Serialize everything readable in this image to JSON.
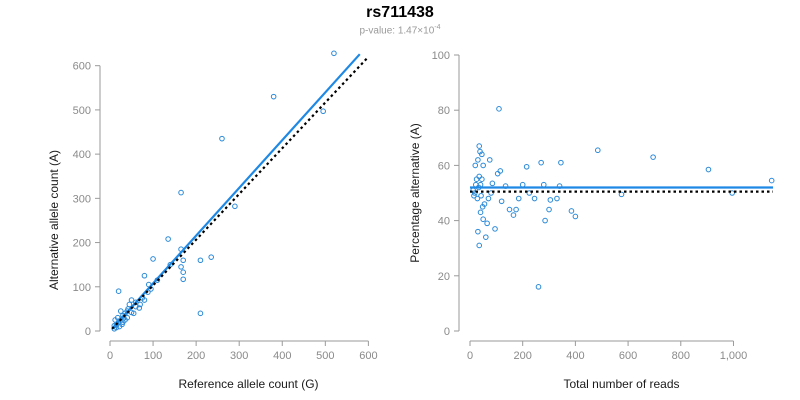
{
  "title": "rs711438",
  "subtitle": {
    "prefix": "p-value: 1.47×10",
    "exponent": "-4"
  },
  "colors": {
    "points": "#2b8ad8",
    "fit": "#1e88e5",
    "reference": "#000000",
    "axis": "#9a9a9a"
  },
  "chart_data": [
    {
      "type": "scatter",
      "xlabel": "Reference allele count (G)",
      "ylabel": "Alternative allele count (A)",
      "xlim": [
        0,
        620
      ],
      "ylim": [
        0,
        640
      ],
      "xticks": [
        0,
        100,
        200,
        300,
        400,
        500,
        600
      ],
      "yticks": [
        0,
        100,
        200,
        300,
        400,
        500,
        600
      ],
      "grid": false,
      "fit_line": {
        "x": [
          5,
          580
        ],
        "y": [
          5,
          626
        ],
        "style": "solid"
      },
      "reference_line": {
        "x": [
          5,
          600
        ],
        "y": [
          5,
          620
        ],
        "style": "dotted"
      },
      "points": [
        [
          520,
          628
        ],
        [
          380,
          530
        ],
        [
          495,
          497
        ],
        [
          260,
          435
        ],
        [
          165,
          313
        ],
        [
          290,
          282
        ],
        [
          135,
          208
        ],
        [
          100,
          163
        ],
        [
          165,
          185
        ],
        [
          170,
          160
        ],
        [
          235,
          167
        ],
        [
          210,
          160
        ],
        [
          165,
          145
        ],
        [
          170,
          133
        ],
        [
          170,
          117
        ],
        [
          140,
          150
        ],
        [
          210,
          40
        ],
        [
          80,
          125
        ],
        [
          90,
          105
        ],
        [
          95,
          95
        ],
        [
          80,
          70
        ],
        [
          75,
          75
        ],
        [
          70,
          60
        ],
        [
          60,
          65
        ],
        [
          50,
          70
        ],
        [
          45,
          60
        ],
        [
          55,
          40
        ],
        [
          40,
          45
        ],
        [
          35,
          40
        ],
        [
          30,
          35
        ],
        [
          25,
          45
        ],
        [
          20,
          90
        ],
        [
          40,
          30
        ],
        [
          35,
          25
        ],
        [
          30,
          20
        ],
        [
          25,
          25
        ],
        [
          20,
          20
        ],
        [
          15,
          15
        ],
        [
          10,
          12
        ],
        [
          12,
          25
        ],
        [
          18,
          30
        ],
        [
          22,
          10
        ],
        [
          28,
          15
        ],
        [
          32,
          30
        ],
        [
          15,
          8
        ],
        [
          10,
          5
        ],
        [
          42,
          50
        ],
        [
          50,
          42
        ],
        [
          60,
          55
        ],
        [
          68,
          52
        ],
        [
          88,
          88
        ],
        [
          110,
          115
        ]
      ]
    },
    {
      "type": "scatter",
      "xlabel": "Total number of reads",
      "ylabel": "Percentage alternative (A)",
      "xlim": [
        0,
        1150
      ],
      "ylim": [
        0,
        100
      ],
      "xticks": [
        0,
        200,
        400,
        600,
        800,
        1000
      ],
      "xticklabels": [
        "0",
        "200",
        "400",
        "600",
        "800",
        "1,000"
      ],
      "yticks": [
        0,
        20,
        40,
        60,
        80,
        100
      ],
      "grid": false,
      "fit_line": {
        "x": [
          0,
          1150
        ],
        "y": [
          52,
          52
        ],
        "style": "solid"
      },
      "reference_line": {
        "x": [
          0,
          1150
        ],
        "y": [
          50.5,
          50.5
        ],
        "style": "dotted"
      },
      "points": [
        [
          1145,
          54.5
        ],
        [
          995,
          50
        ],
        [
          905,
          58.5
        ],
        [
          695,
          63
        ],
        [
          575,
          49.5
        ],
        [
          485,
          65.5
        ],
        [
          400,
          41.5
        ],
        [
          385,
          43.5
        ],
        [
          345,
          61
        ],
        [
          340,
          52.5
        ],
        [
          330,
          48
        ],
        [
          305,
          47.5
        ],
        [
          300,
          44
        ],
        [
          285,
          40
        ],
        [
          280,
          53
        ],
        [
          270,
          61
        ],
        [
          260,
          16
        ],
        [
          245,
          48
        ],
        [
          225,
          50
        ],
        [
          215,
          59.5
        ],
        [
          200,
          53
        ],
        [
          185,
          48
        ],
        [
          175,
          44
        ],
        [
          165,
          42
        ],
        [
          150,
          44
        ],
        [
          135,
          52.5
        ],
        [
          120,
          47
        ],
        [
          115,
          58
        ],
        [
          110,
          80.5
        ],
        [
          105,
          57
        ],
        [
          95,
          37
        ],
        [
          85,
          53.5
        ],
        [
          80,
          50
        ],
        [
          75,
          62
        ],
        [
          70,
          48
        ],
        [
          65,
          39
        ],
        [
          60,
          34
        ],
        [
          55,
          46
        ],
        [
          50,
          40.5
        ],
        [
          50,
          60
        ],
        [
          45,
          64
        ],
        [
          45,
          55
        ],
        [
          42,
          49
        ],
        [
          40,
          43
        ],
        [
          38,
          65
        ],
        [
          35,
          67
        ],
        [
          35,
          56
        ],
        [
          33,
          52
        ],
        [
          30,
          62
        ],
        [
          28,
          48
        ],
        [
          25,
          55
        ],
        [
          22,
          53
        ],
        [
          20,
          60
        ],
        [
          18,
          50
        ],
        [
          15,
          49
        ],
        [
          12,
          51
        ],
        [
          30,
          36
        ],
        [
          35,
          31
        ],
        [
          40,
          53
        ],
        [
          48,
          45
        ]
      ]
    }
  ]
}
